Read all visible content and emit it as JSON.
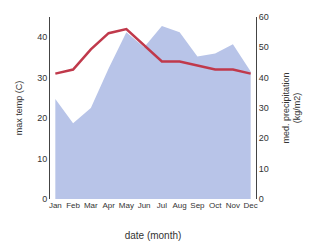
{
  "chart_data": {
    "type": "line",
    "xlabel": "date (month)",
    "ylabel": "max temp (C)",
    "y2label": "med. precipitation\n(kg/m2)",
    "categories": [
      "Jan",
      "Feb",
      "Mar",
      "Apr",
      "May",
      "Jun",
      "Jul",
      "Aug",
      "Sep",
      "Oct",
      "Nov",
      "Dec"
    ],
    "series": [
      {
        "type": "area",
        "axis": "y2",
        "color": "#b8c4e8",
        "values": [
          33,
          25,
          30,
          43,
          55,
          50,
          57,
          55,
          47,
          48,
          51,
          42
        ]
      },
      {
        "type": "line",
        "color": "#c0394b",
        "values": [
          31,
          32,
          37,
          41,
          42,
          38,
          34,
          34,
          33,
          32,
          32,
          31
        ]
      }
    ],
    "ylim": [
      0,
      45
    ],
    "yticks": [
      0,
      10,
      20,
      30,
      40
    ],
    "y2lim": [
      0,
      60
    ],
    "y2ticks": [
      0,
      10,
      20,
      30,
      40,
      50,
      60
    ],
    "grid": false
  }
}
